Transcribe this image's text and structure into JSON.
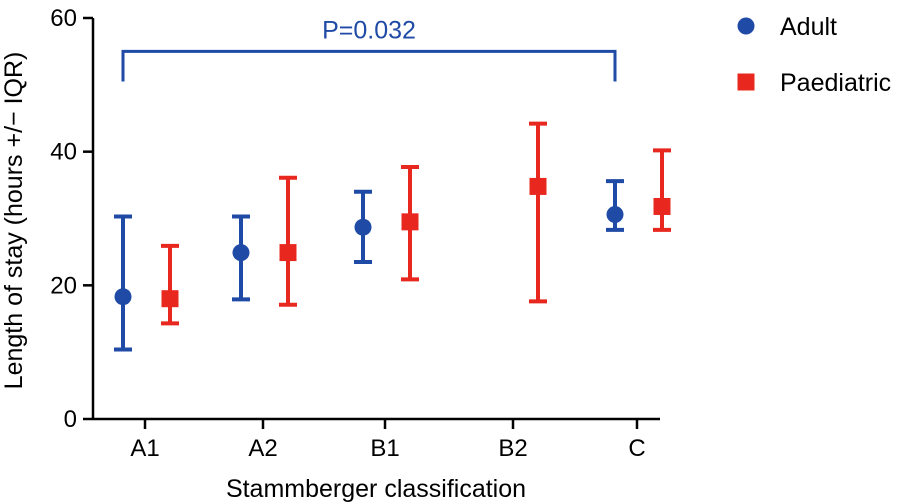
{
  "chart_data": {
    "type": "scatter",
    "title": "",
    "xlabel": "Stammberger classification",
    "ylabel": "Length of stay (hours +/− IQR)",
    "categories": [
      "A1",
      "A2",
      "B1",
      "B2",
      "C"
    ],
    "ylim": [
      0,
      60
    ],
    "yticks": [
      "0",
      "20",
      "40",
      "60"
    ],
    "grid": false,
    "legend_position": "top-right",
    "series": [
      {
        "name": "Adult",
        "marker": "circle",
        "color": "#1f4aa5",
        "values": [
          18.3,
          24.9,
          28.7,
          null,
          30.6
        ],
        "lower": [
          10.4,
          17.9,
          23.5,
          null,
          28.3
        ],
        "upper": [
          30.3,
          30.3,
          34.0,
          null,
          35.6
        ]
      },
      {
        "name": "Paediatric",
        "marker": "square",
        "color": "#e8281f",
        "values": [
          18.0,
          24.9,
          29.5,
          34.8,
          31.8
        ],
        "lower": [
          14.3,
          17.1,
          20.9,
          17.6,
          28.3
        ],
        "upper": [
          25.9,
          36.1,
          37.7,
          44.2,
          40.2
        ]
      }
    ],
    "annotations": [
      {
        "text": "P=0.032",
        "from_category": "A1",
        "to_category": "C",
        "y": 55,
        "bracket_bottom": 50.5,
        "color": "#1f4aa5"
      }
    ]
  }
}
